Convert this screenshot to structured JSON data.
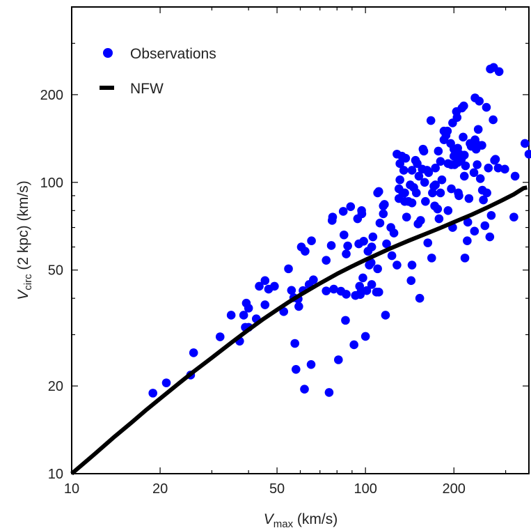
{
  "chart_data": {
    "type": "scatter",
    "x_scale": "log",
    "y_scale": "log",
    "xlim": [
      10,
      360
    ],
    "ylim": [
      10,
      400
    ],
    "xticks": [
      {
        "value": 10,
        "label": "10"
      },
      {
        "value": 20,
        "label": "20"
      },
      {
        "value": 50,
        "label": "50"
      },
      {
        "value": 100,
        "label": "100"
      },
      {
        "value": 200,
        "label": "200"
      }
    ],
    "yticks": [
      {
        "value": 10,
        "label": "10"
      },
      {
        "value": 20,
        "label": "20"
      },
      {
        "value": 50,
        "label": "50"
      },
      {
        "value": 100,
        "label": "100"
      },
      {
        "value": 200,
        "label": "200"
      }
    ],
    "xlabel": {
      "main": "V",
      "sub": "max",
      "rest": " (km/s)"
    },
    "ylabel": {
      "main": "V",
      "sub": "circ",
      "rest": " (2 kpc) (km/s)"
    },
    "legend_position": "top-left",
    "grid": false,
    "colors": {
      "observations": "#0000ff",
      "nfw": "#000000"
    },
    "series": [
      {
        "name": "Observations",
        "kind": "points",
        "points": [
          [
            18.9,
            18.9
          ],
          [
            21,
            20.5
          ],
          [
            25.4,
            21.8
          ],
          [
            26,
            26
          ],
          [
            32,
            29.5
          ],
          [
            34.9,
            35
          ],
          [
            37.3,
            28.5
          ],
          [
            38.5,
            35
          ],
          [
            39,
            31.8
          ],
          [
            40,
            31.8
          ],
          [
            39.3,
            38.5
          ],
          [
            40,
            37
          ],
          [
            42.5,
            34
          ],
          [
            43.5,
            44
          ],
          [
            45.5,
            46
          ],
          [
            45.5,
            38
          ],
          [
            46.8,
            43
          ],
          [
            49,
            44
          ],
          [
            52.7,
            36
          ],
          [
            54.7,
            50.5
          ],
          [
            56,
            42.6
          ],
          [
            57,
            40.2
          ],
          [
            57.5,
            28
          ],
          [
            58,
            22.8
          ],
          [
            59,
            39.8
          ],
          [
            59.3,
            37.5
          ],
          [
            60.5,
            60
          ],
          [
            61.3,
            42.5
          ],
          [
            62,
            19.5
          ],
          [
            62.3,
            58
          ],
          [
            64.3,
            44.6
          ],
          [
            65.3,
            23.7
          ],
          [
            65.5,
            63
          ],
          [
            66.5,
            46.3
          ],
          [
            73.5,
            42.4
          ],
          [
            73.5,
            54
          ],
          [
            75.2,
            19
          ],
          [
            76.5,
            60.7
          ],
          [
            77,
            74
          ],
          [
            77.3,
            76
          ],
          [
            78,
            43
          ],
          [
            80.9,
            24.6
          ],
          [
            82.5,
            42.3
          ],
          [
            84,
            79.5
          ],
          [
            84.5,
            66
          ],
          [
            85.5,
            33.6
          ],
          [
            86,
            41.3
          ],
          [
            86,
            56.8
          ],
          [
            87,
            60.5
          ],
          [
            89,
            82.5
          ],
          [
            91.4,
            27.7
          ],
          [
            92.4,
            40.9
          ],
          [
            94.9,
            61.5
          ],
          [
            94,
            75
          ],
          [
            95.5,
            44
          ],
          [
            96,
            41.2
          ],
          [
            96.5,
            42
          ],
          [
            97,
            80
          ],
          [
            97.2,
            78
          ],
          [
            98,
            47
          ],
          [
            98.6,
            62.8
          ],
          [
            100,
            29.6
          ],
          [
            101,
            42.5
          ],
          [
            102,
            58
          ],
          [
            103,
            52
          ],
          [
            104.5,
            53
          ],
          [
            105,
            60
          ],
          [
            105,
            44.6
          ],
          [
            106,
            65
          ],
          [
            109,
            42
          ],
          [
            110,
            92
          ],
          [
            110,
            50.5
          ],
          [
            111,
            93
          ],
          [
            111,
            42
          ],
          [
            112,
            72.5
          ],
          [
            115,
            83
          ],
          [
            115,
            78
          ],
          [
            116,
            84
          ],
          [
            117,
            35
          ],
          [
            118,
            61.5
          ],
          [
            122,
            70
          ],
          [
            123,
            56
          ],
          [
            125,
            67
          ],
          [
            128,
            52
          ],
          [
            128,
            125
          ],
          [
            130,
            88
          ],
          [
            130,
            95
          ],
          [
            131,
            116
          ],
          [
            131,
            102
          ],
          [
            133,
            123
          ],
          [
            135,
            110
          ],
          [
            134,
            92
          ],
          [
            136,
            92
          ],
          [
            136,
            86
          ],
          [
            137,
            121
          ],
          [
            138,
            76
          ],
          [
            140,
            86
          ],
          [
            142,
            98
          ],
          [
            143,
            46
          ],
          [
            144,
            52
          ],
          [
            144,
            85
          ],
          [
            144,
            110
          ],
          [
            146,
            96
          ],
          [
            148,
            119
          ],
          [
            149,
            92
          ],
          [
            150,
            116
          ],
          [
            151,
            72
          ],
          [
            152,
            105
          ],
          [
            153,
            40
          ],
          [
            154,
            74
          ],
          [
            156,
            111
          ],
          [
            157,
            130
          ],
          [
            158,
            128
          ],
          [
            159,
            100
          ],
          [
            160,
            86
          ],
          [
            162,
            110
          ],
          [
            163,
            62
          ],
          [
            164,
            108
          ],
          [
            167,
            163
          ],
          [
            168,
            55
          ],
          [
            169,
            92
          ],
          [
            171,
            97
          ],
          [
            172,
            83
          ],
          [
            173,
            98
          ],
          [
            173,
            112
          ],
          [
            176,
            81
          ],
          [
            177,
            128
          ],
          [
            178,
            75
          ],
          [
            180,
            92
          ],
          [
            180,
            118
          ],
          [
            182,
            102
          ],
          [
            185,
            150
          ],
          [
            185,
            140
          ],
          [
            188,
            145
          ],
          [
            190,
            150
          ],
          [
            191,
            116
          ],
          [
            191,
            80
          ],
          [
            195,
            136
          ],
          [
            196,
            115
          ],
          [
            196,
            95
          ],
          [
            198,
            70
          ],
          [
            198,
            160
          ],
          [
            200,
            130
          ],
          [
            200,
            123
          ],
          [
            201,
            115
          ],
          [
            204,
            175
          ],
          [
            205,
            167
          ],
          [
            206,
            117
          ],
          [
            206,
            131
          ],
          [
            207,
            92
          ],
          [
            208,
            90
          ],
          [
            209,
            125
          ],
          [
            211,
            122
          ],
          [
            212,
            120
          ],
          [
            213,
            180
          ],
          [
            213,
            123
          ],
          [
            215,
            143
          ],
          [
            216,
            183
          ],
          [
            217,
            124
          ],
          [
            217,
            105
          ],
          [
            218,
            55
          ],
          [
            219,
            114
          ],
          [
            222,
            63
          ],
          [
            223,
            73
          ],
          [
            225,
            88
          ],
          [
            227,
            136
          ],
          [
            229,
            133
          ],
          [
            234,
            108
          ],
          [
            235,
            68
          ],
          [
            236,
            195
          ],
          [
            236,
            140
          ],
          [
            238,
            130
          ],
          [
            240,
            115
          ],
          [
            242,
            152
          ],
          [
            243,
            134
          ],
          [
            244,
            190
          ],
          [
            246,
            103
          ],
          [
            249,
            134
          ],
          [
            250,
            94
          ],
          [
            252,
            87
          ],
          [
            255,
            71
          ],
          [
            258,
            181
          ],
          [
            259,
            92
          ],
          [
            262,
            112
          ],
          [
            265,
            65
          ],
          [
            266,
            245
          ],
          [
            268,
            77
          ],
          [
            272,
            164
          ],
          [
            273,
            248
          ],
          [
            275,
            119
          ],
          [
            277,
            120
          ],
          [
            283,
            112
          ],
          [
            285,
            240
          ],
          [
            298,
            111
          ],
          [
            320,
            76
          ],
          [
            323,
            105
          ],
          [
            349,
            136
          ],
          [
            360,
            125
          ]
        ]
      },
      {
        "name": "NFW",
        "kind": "line",
        "points": [
          [
            10,
            10
          ],
          [
            12,
            11.7
          ],
          [
            14,
            13.4
          ],
          [
            16,
            15
          ],
          [
            18,
            16.6
          ],
          [
            20,
            18.1
          ],
          [
            23,
            20.3
          ],
          [
            26,
            22.4
          ],
          [
            30,
            25
          ],
          [
            35,
            28.2
          ],
          [
            40,
            31.2
          ],
          [
            45,
            34
          ],
          [
            50,
            36.5
          ],
          [
            55,
            38.9
          ],
          [
            60,
            41.1
          ],
          [
            70,
            45
          ],
          [
            80,
            48.5
          ],
          [
            90,
            51.5
          ],
          [
            100,
            54.2
          ],
          [
            120,
            59
          ],
          [
            140,
            63
          ],
          [
            160,
            66.5
          ],
          [
            180,
            69.8
          ],
          [
            200,
            73
          ],
          [
            230,
            77.5
          ],
          [
            260,
            82
          ],
          [
            290,
            86.5
          ],
          [
            320,
            91
          ],
          [
            345,
            95.5
          ],
          [
            355,
            96
          ]
        ]
      }
    ]
  }
}
